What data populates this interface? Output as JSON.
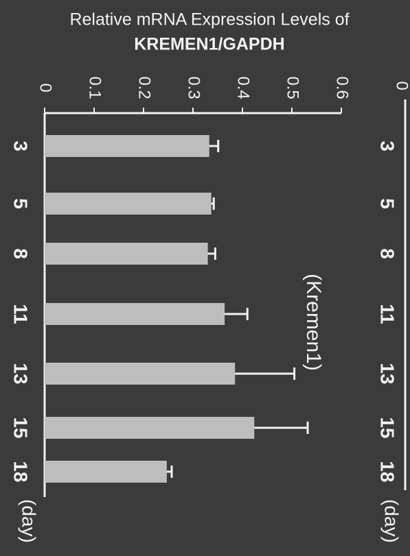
{
  "chart_data": [
    {
      "type": "bar",
      "orientation": "horizontal",
      "title": "Relative mRNA Expression Levels of",
      "subtitle": "KREMEN1/GAPDH",
      "annotation": "(Kremen1)",
      "x_label": "(day)",
      "categories": [
        "3",
        "5",
        "8",
        "11",
        "13",
        "15",
        "18"
      ],
      "values": [
        0.333,
        0.337,
        0.33,
        0.364,
        0.385,
        0.424,
        0.247
      ],
      "errors": [
        0.018,
        0.005,
        0.015,
        0.046,
        0.12,
        0.108,
        0.01
      ],
      "color": "#bdbdbd",
      "ylim": [
        0,
        0.6
      ],
      "yticks": [
        0,
        0.1,
        0.2,
        0.3,
        0.4,
        0.5,
        0.6
      ]
    },
    {
      "type": "bar-partial",
      "x_label": "(day)",
      "categories": [
        "3",
        "5",
        "8",
        "11",
        "13",
        "15",
        "18"
      ],
      "yticks": [
        0
      ]
    }
  ]
}
